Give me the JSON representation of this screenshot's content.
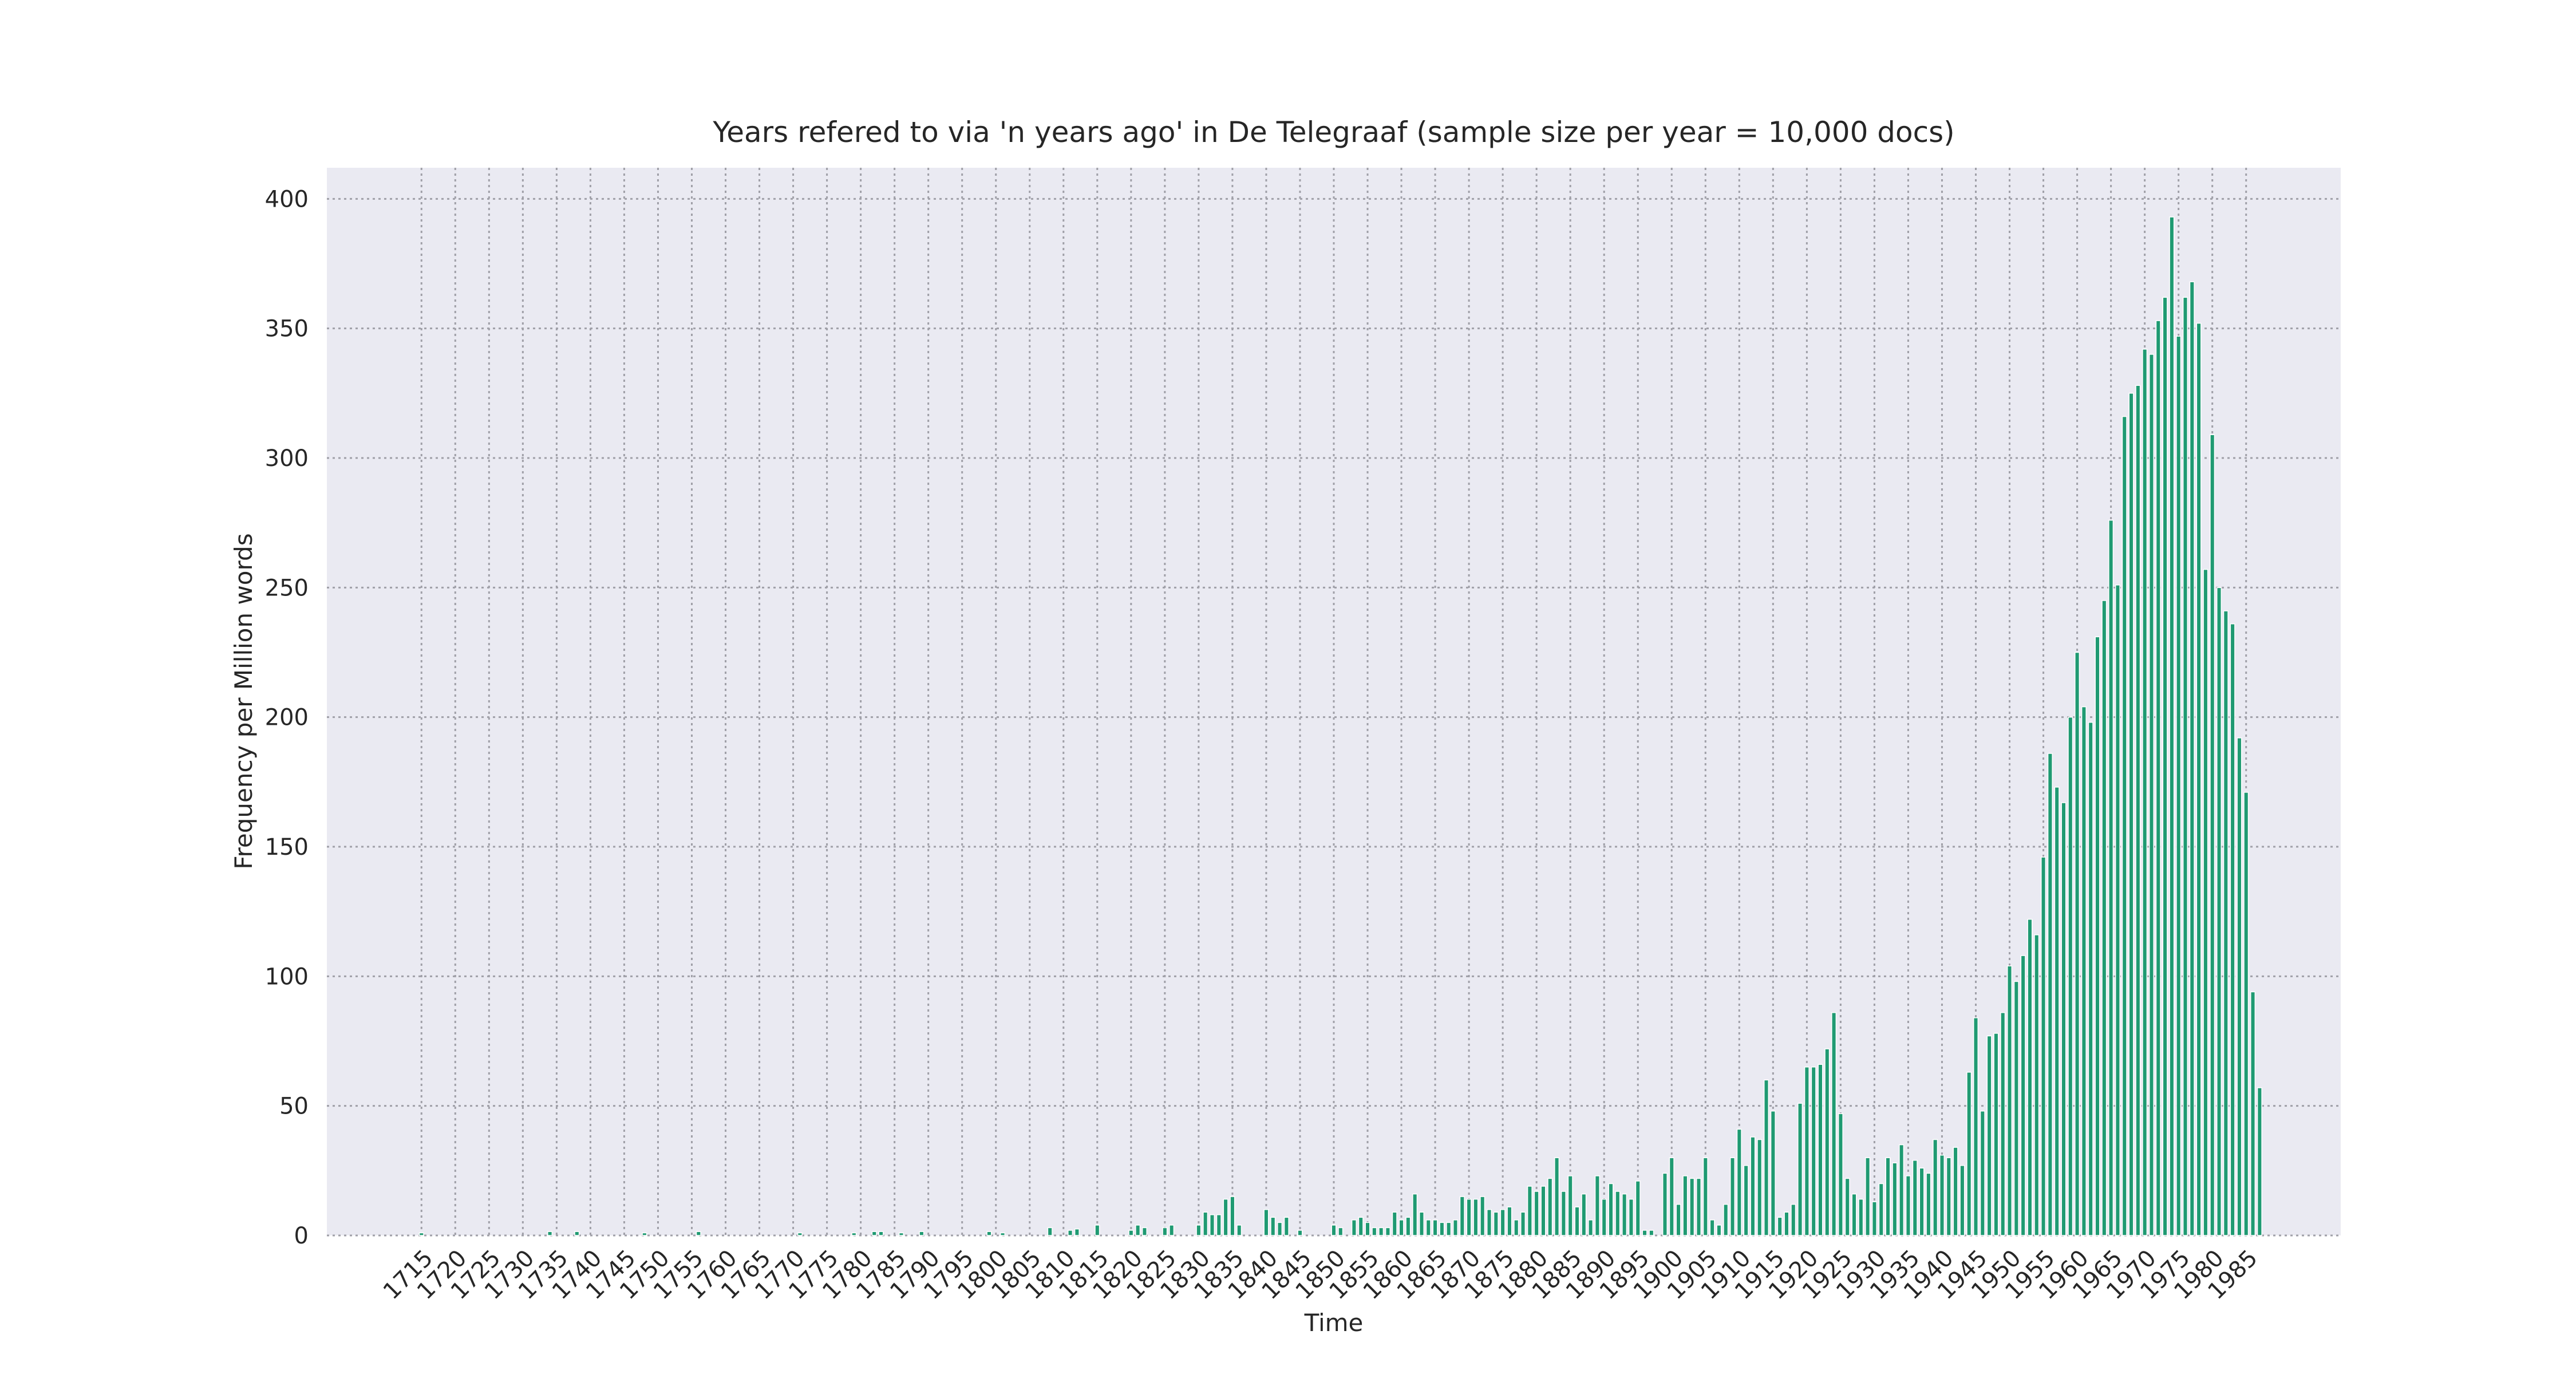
{
  "chart_data": {
    "type": "bar",
    "title": "Years refered to via 'n years ago' in De Telegraaf (sample size per year = 10,000 docs)",
    "xlabel": "Time",
    "ylabel": "Frequency per Million words",
    "color": "#1f9a72",
    "grid": true,
    "x": [
      1715,
      1716,
      1717,
      1718,
      1719,
      1720,
      1721,
      1722,
      1723,
      1724,
      1725,
      1726,
      1727,
      1728,
      1729,
      1730,
      1731,
      1732,
      1733,
      1734,
      1735,
      1736,
      1737,
      1738,
      1739,
      1740,
      1741,
      1742,
      1743,
      1744,
      1745,
      1746,
      1747,
      1748,
      1749,
      1750,
      1751,
      1752,
      1753,
      1754,
      1755,
      1756,
      1757,
      1758,
      1759,
      1760,
      1761,
      1762,
      1763,
      1764,
      1765,
      1766,
      1767,
      1768,
      1769,
      1770,
      1771,
      1772,
      1773,
      1774,
      1775,
      1776,
      1777,
      1778,
      1779,
      1780,
      1781,
      1782,
      1783,
      1784,
      1785,
      1786,
      1787,
      1788,
      1789,
      1790,
      1791,
      1792,
      1793,
      1794,
      1795,
      1796,
      1797,
      1798,
      1799,
      1800,
      1801,
      1802,
      1803,
      1804,
      1805,
      1806,
      1807,
      1808,
      1809,
      1810,
      1811,
      1812,
      1813,
      1814,
      1815,
      1816,
      1817,
      1818,
      1819,
      1820,
      1821,
      1822,
      1823,
      1824,
      1825,
      1826,
      1827,
      1828,
      1829,
      1830,
      1831,
      1832,
      1833,
      1834,
      1835,
      1836,
      1837,
      1838,
      1839,
      1840,
      1841,
      1842,
      1843,
      1844,
      1845,
      1846,
      1847,
      1848,
      1849,
      1850,
      1851,
      1852,
      1853,
      1854,
      1855,
      1856,
      1857,
      1858,
      1859,
      1860,
      1861,
      1862,
      1863,
      1864,
      1865,
      1866,
      1867,
      1868,
      1869,
      1870,
      1871,
      1872,
      1873,
      1874,
      1875,
      1876,
      1877,
      1878,
      1879,
      1880,
      1881,
      1882,
      1883,
      1884,
      1885,
      1886,
      1887,
      1888,
      1889,
      1890,
      1891,
      1892,
      1893,
      1894,
      1895,
      1896,
      1897,
      1898,
      1899,
      1900,
      1901,
      1902,
      1903,
      1904,
      1905,
      1906,
      1907,
      1908,
      1909,
      1910,
      1911,
      1912,
      1913,
      1914,
      1915,
      1916,
      1917,
      1918,
      1919,
      1920,
      1921,
      1922,
      1923,
      1924,
      1925,
      1926,
      1927,
      1928,
      1929,
      1930,
      1931,
      1932,
      1933,
      1934,
      1935,
      1936,
      1937,
      1938,
      1939,
      1940,
      1941,
      1942,
      1943,
      1944,
      1945,
      1946,
      1947,
      1948,
      1949,
      1950,
      1951,
      1952,
      1953,
      1954,
      1955,
      1956,
      1957,
      1958,
      1959,
      1960,
      1961,
      1962,
      1963,
      1964,
      1965,
      1966,
      1967,
      1968,
      1969,
      1970,
      1971,
      1972,
      1973,
      1974,
      1975,
      1976,
      1977,
      1978,
      1979,
      1980,
      1981,
      1982,
      1983,
      1984,
      1985,
      1986,
      1987
    ],
    "values": [
      1,
      0,
      0,
      0,
      0,
      0,
      0,
      0,
      0,
      0,
      0,
      0,
      0,
      0,
      0,
      0,
      0,
      0,
      0,
      1.5,
      0,
      0,
      0,
      1.5,
      0,
      0,
      0,
      0,
      0,
      0,
      0,
      0,
      0,
      1,
      0,
      0,
      0,
      0,
      0,
      0,
      0,
      1.5,
      0,
      0,
      0,
      0,
      0,
      0,
      0,
      0,
      0,
      0,
      0,
      0,
      0,
      0,
      1,
      0,
      0,
      0,
      0,
      0,
      0,
      0,
      1,
      0,
      0,
      1.5,
      1.5,
      0,
      0,
      1,
      0,
      0,
      1.5,
      0,
      0,
      0,
      0,
      0,
      0,
      0,
      0,
      0,
      1.5,
      0,
      1,
      0,
      0,
      0,
      0,
      0,
      0,
      3,
      0,
      0,
      2,
      2.5,
      0,
      0,
      4,
      0,
      0,
      0,
      0,
      2,
      4,
      3,
      0,
      0,
      3,
      4,
      0,
      0,
      0,
      4,
      9,
      8,
      8,
      14,
      15,
      4,
      0,
      0,
      0,
      10,
      7,
      5,
      7,
      0,
      2,
      0,
      0,
      0,
      0,
      4,
      3,
      0,
      6,
      7,
      5,
      3,
      3,
      3,
      9,
      6,
      7,
      16,
      9,
      6,
      6,
      5,
      5,
      6,
      15,
      14,
      14,
      15,
      10,
      9,
      10,
      11,
      6,
      9,
      19,
      17,
      19,
      22,
      30,
      17,
      23,
      11,
      16,
      6,
      23,
      14,
      20,
      17,
      16,
      14,
      21,
      2,
      2,
      0,
      24,
      30,
      12,
      23,
      22,
      22,
      30,
      6,
      4,
      12,
      30,
      41,
      27,
      38,
      37,
      60,
      48,
      7,
      9,
      12,
      51,
      65,
      65,
      66,
      72,
      86,
      47,
      22,
      16,
      14,
      30,
      13,
      20,
      30,
      28,
      35,
      23,
      29,
      26,
      24,
      37,
      31,
      30,
      34,
      27,
      63,
      84,
      48,
      77,
      78,
      86,
      104,
      98,
      108,
      122,
      116,
      146,
      186,
      173,
      167,
      200,
      225,
      204,
      198,
      231,
      245,
      276,
      251,
      316,
      325,
      328,
      342,
      340,
      353,
      362,
      393,
      347,
      362,
      368,
      352,
      257,
      309,
      250,
      241,
      236,
      192,
      171,
      94,
      57
    ],
    "xlim": [
      1701,
      1999
    ],
    "xticks": [
      1715,
      1720,
      1725,
      1730,
      1735,
      1740,
      1745,
      1750,
      1755,
      1760,
      1765,
      1770,
      1775,
      1780,
      1785,
      1790,
      1795,
      1800,
      1805,
      1810,
      1815,
      1820,
      1825,
      1830,
      1835,
      1840,
      1845,
      1850,
      1855,
      1860,
      1865,
      1870,
      1875,
      1880,
      1885,
      1890,
      1895,
      1900,
      1905,
      1910,
      1915,
      1920,
      1925,
      1930,
      1935,
      1940,
      1945,
      1950,
      1955,
      1960,
      1965,
      1970,
      1975,
      1980,
      1985
    ],
    "ylim": [
      0,
      412
    ],
    "yticks": [
      0,
      50,
      100,
      150,
      200,
      250,
      300,
      350,
      400
    ]
  }
}
